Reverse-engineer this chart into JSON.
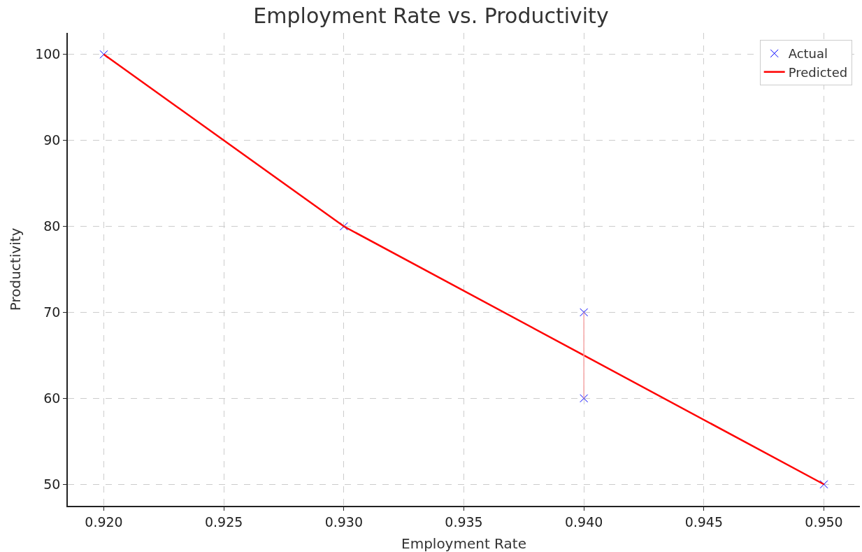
{
  "chart_data": {
    "type": "scatter",
    "title": "Employment Rate vs. Productivity",
    "xlabel": "Employment Rate",
    "ylabel": "Productivity",
    "series": [
      {
        "name": "Actual",
        "marker": "cross",
        "color": "#0000ff",
        "x": [
          0.92,
          0.93,
          0.94,
          0.94,
          0.95
        ],
        "values": [
          100,
          80,
          70,
          60,
          50
        ]
      },
      {
        "name": "Predicted",
        "type": "line",
        "marker": "none",
        "line_style": "solid",
        "color": "#ff0000",
        "x": [
          0.92,
          0.93,
          0.94,
          0.95
        ],
        "values": [
          100,
          80,
          65,
          50
        ]
      },
      {
        "type": "line",
        "marker": "none",
        "line_style": "solid",
        "color": "#f4a6a6",
        "x": [
          0.94,
          0.94
        ],
        "values": [
          60,
          70
        ]
      }
    ],
    "xlim": [
      0.9185,
      0.9515
    ],
    "xticks": [
      {
        "value": 0.92,
        "label": "0.920"
      },
      {
        "value": 0.925,
        "label": "0.925"
      },
      {
        "value": 0.93,
        "label": "0.930"
      },
      {
        "value": 0.935,
        "label": "0.935"
      },
      {
        "value": 0.94,
        "label": "0.940"
      },
      {
        "value": 0.945,
        "label": "0.945"
      },
      {
        "value": 0.95,
        "label": "0.950"
      }
    ],
    "ylim": [
      47.5,
      102.5
    ],
    "yticks": [
      50,
      60,
      70,
      80,
      90,
      100
    ],
    "grid": true,
    "legend": "top right"
  }
}
